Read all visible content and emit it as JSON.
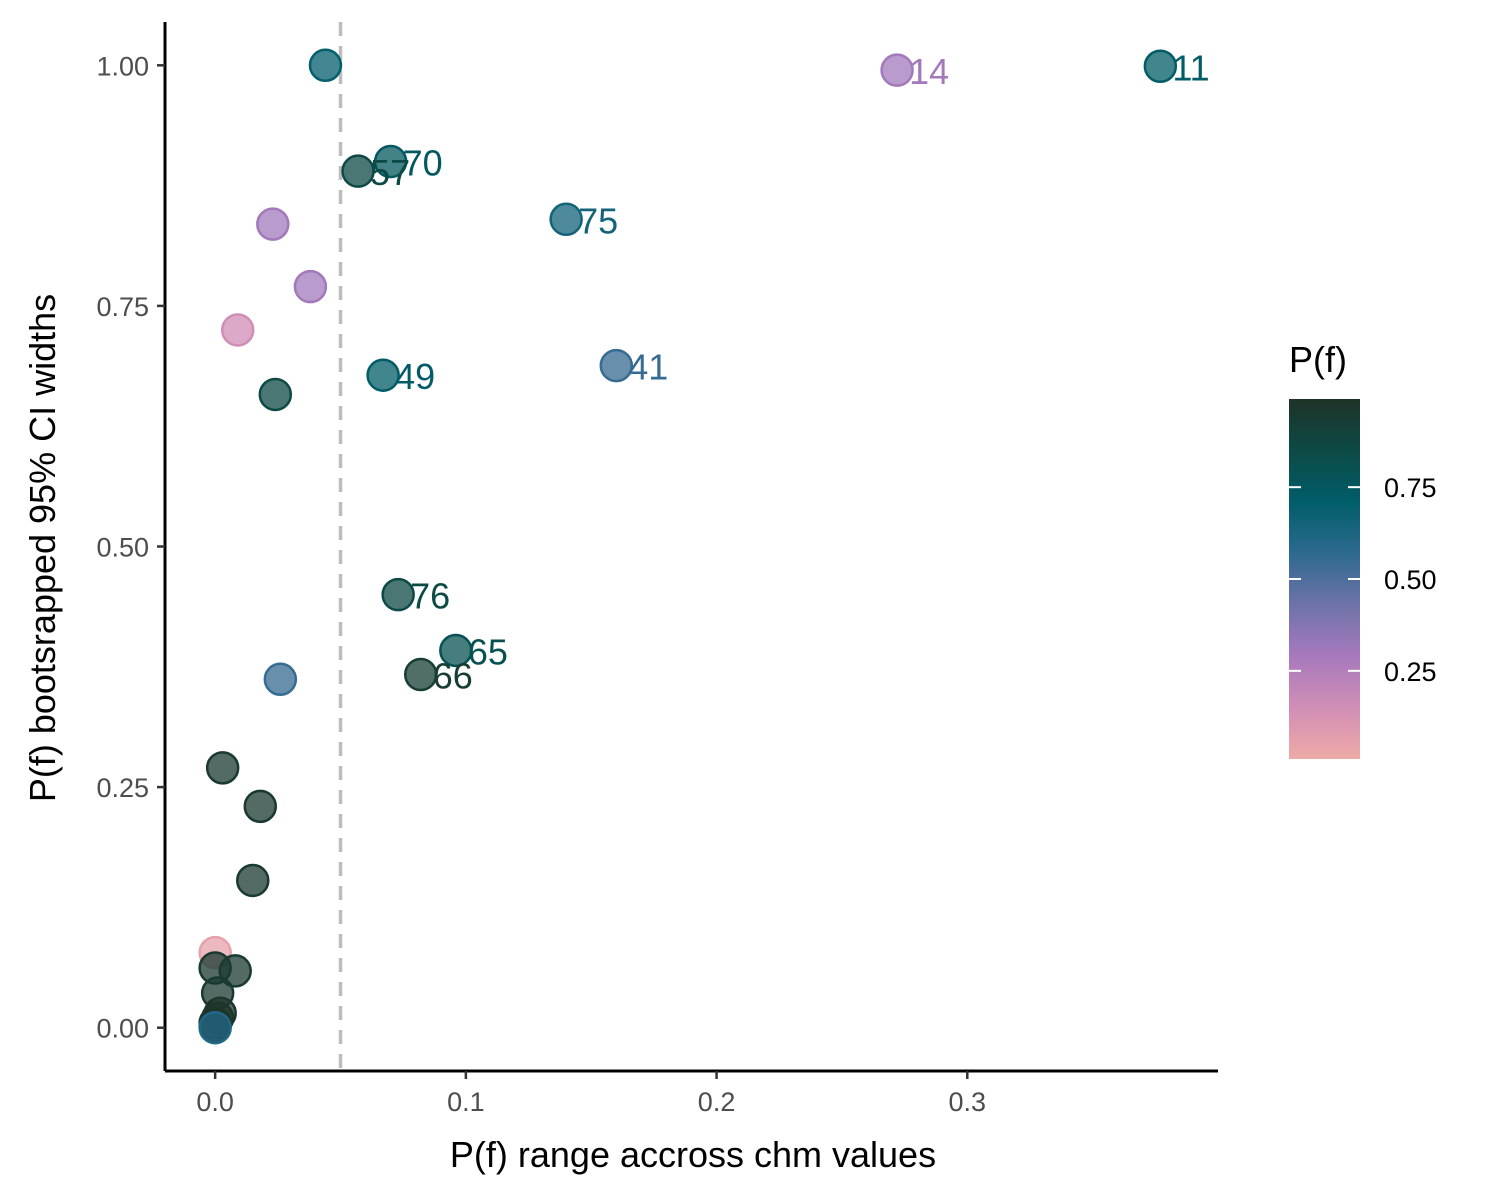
{
  "chart_data": {
    "type": "scatter",
    "xlabel": "P(f) range accross chm values",
    "ylabel": "P(f) bootsrapped 95% CI widths",
    "xlim": [
      -0.02,
      0.4
    ],
    "ylim": [
      -0.045,
      1.045
    ],
    "x_ticks": [
      0.0,
      0.1,
      0.2,
      0.3
    ],
    "x_tick_labels": [
      "0.0",
      "0.1",
      "0.2",
      "0.3"
    ],
    "y_ticks": [
      0.0,
      0.25,
      0.5,
      0.75,
      1.0
    ],
    "y_tick_labels": [
      "0.00",
      "0.25",
      "0.50",
      "0.75",
      "1.00"
    ],
    "reference_line": {
      "axis": "x",
      "value": 0.05,
      "style": "dashed",
      "color": "#bdbdbd"
    },
    "grid": false,
    "color_scale": {
      "title": "P(f)",
      "limits": [
        0.01,
        0.99
      ],
      "stops": [
        "#eeaaa6",
        "#d08eb6",
        "#a779bd",
        "#6e73a8",
        "#2d6a8e",
        "#005d6a",
        "#0d4a45",
        "#1e3328"
      ],
      "ticks": [
        0.25,
        0.5,
        0.75
      ],
      "tick_labels": [
        "0.25",
        "0.50",
        "0.75"
      ],
      "legend_position": "right"
    },
    "points": [
      {
        "x": 0.044,
        "y": 1.0,
        "pf": 0.7
      },
      {
        "x": 0.272,
        "y": 0.995,
        "pf": 0.3,
        "label": "14"
      },
      {
        "x": 0.377,
        "y": 0.999,
        "pf": 0.72,
        "label": "11"
      },
      {
        "x": 0.07,
        "y": 0.9,
        "pf": 0.75,
        "label": "70"
      },
      {
        "x": 0.057,
        "y": 0.89,
        "pf": 0.85,
        "label": "57"
      },
      {
        "x": 0.14,
        "y": 0.84,
        "pf": 0.65,
        "label": "75"
      },
      {
        "x": 0.023,
        "y": 0.835,
        "pf": 0.3
      },
      {
        "x": 0.038,
        "y": 0.77,
        "pf": 0.3
      },
      {
        "x": 0.009,
        "y": 0.725,
        "pf": 0.15
      },
      {
        "x": 0.067,
        "y": 0.678,
        "pf": 0.72,
        "label": "49"
      },
      {
        "x": 0.16,
        "y": 0.688,
        "pf": 0.55,
        "label": "41"
      },
      {
        "x": 0.024,
        "y": 0.658,
        "pf": 0.85
      },
      {
        "x": 0.073,
        "y": 0.45,
        "pf": 0.85,
        "label": "76"
      },
      {
        "x": 0.096,
        "y": 0.392,
        "pf": 0.8,
        "label": "65"
      },
      {
        "x": 0.082,
        "y": 0.367,
        "pf": 0.93,
        "label": "66"
      },
      {
        "x": 0.026,
        "y": 0.362,
        "pf": 0.55
      },
      {
        "x": 0.003,
        "y": 0.27,
        "pf": 0.95
      },
      {
        "x": 0.018,
        "y": 0.23,
        "pf": 0.95
      },
      {
        "x": 0.015,
        "y": 0.153,
        "pf": 0.95
      },
      {
        "x": 0.0,
        "y": 0.078,
        "pf": 0.05
      },
      {
        "x": 0.0,
        "y": 0.062,
        "pf": 0.95
      },
      {
        "x": 0.008,
        "y": 0.059,
        "pf": 0.95
      },
      {
        "x": 0.001,
        "y": 0.036,
        "pf": 0.95
      },
      {
        "x": 0.002,
        "y": 0.015,
        "pf": 0.97
      },
      {
        "x": 0.001,
        "y": 0.01,
        "pf": 0.98
      },
      {
        "x": 0.0,
        "y": 0.005,
        "pf": 0.98
      },
      {
        "x": 0.0,
        "y": 0.002,
        "pf": 0.99
      },
      {
        "x": 0.0,
        "y": 0.0,
        "pf": 0.6
      }
    ]
  }
}
